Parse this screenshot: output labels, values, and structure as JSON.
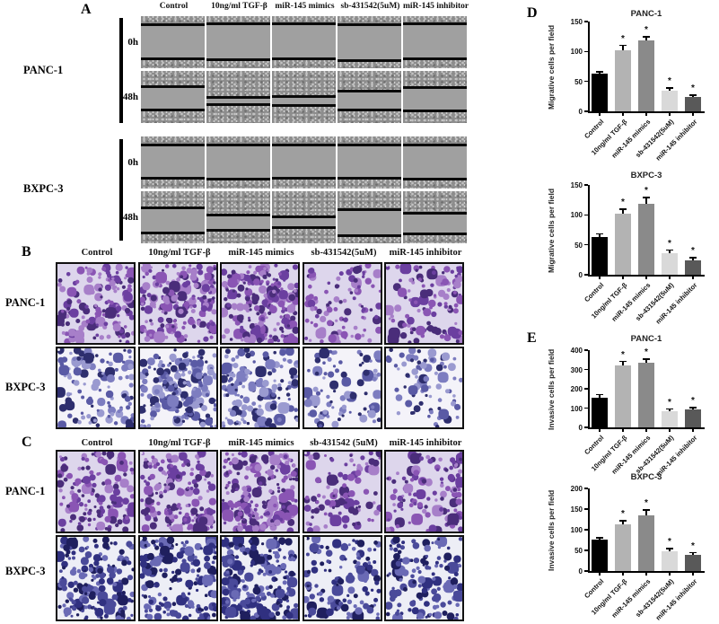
{
  "panel_a": {
    "letter": "A",
    "col_headers": [
      "Control",
      "10ng/ml TGF-β",
      "miR-145 mimics",
      "sb-431542(5uM)",
      "miR-145 inhibitor"
    ],
    "groups": [
      {
        "cell_line": "PANC-1",
        "rows": [
          {
            "time": "0h",
            "wounds": [
              [
                13,
                80
              ],
              [
                12,
                81
              ],
              [
                12,
                80
              ],
              [
                13,
                82
              ],
              [
                12,
                80
              ]
            ]
          },
          {
            "time": "48h",
            "wounds": [
              [
                28,
                72
              ],
              [
                48,
                62
              ],
              [
                47,
                64
              ],
              [
                36,
                72
              ],
              [
                29,
                74
              ]
            ]
          }
        ]
      },
      {
        "cell_line": "BXPC-3",
        "rows": [
          {
            "time": "0h",
            "wounds": [
              [
                14,
                78
              ],
              [
                13,
                79
              ],
              [
                14,
                78
              ],
              [
                13,
                78
              ],
              [
                14,
                79
              ]
            ]
          },
          {
            "time": "48h",
            "wounds": [
              [
                30,
                77
              ],
              [
                43,
                72
              ],
              [
                46,
                68
              ],
              [
                33,
                83
              ],
              [
                40,
                80
              ]
            ]
          }
        ]
      }
    ]
  },
  "panel_b": {
    "letter": "B",
    "col_headers": [
      "Control",
      "10ng/ml TGF-β",
      "miR-145 mimics",
      "sb-431542(5uM)",
      "miR-145 inhibitor"
    ],
    "rows": [
      {
        "cell_line": "PANC-1",
        "theme": "purple",
        "densities": [
          0.55,
          0.85,
          0.9,
          0.3,
          0.35
        ]
      },
      {
        "cell_line": "BXPC-3",
        "theme": "blue",
        "densities": [
          0.4,
          0.8,
          0.6,
          0.22,
          0.18
        ]
      }
    ]
  },
  "panel_c": {
    "letter": "C",
    "col_headers": [
      "Control",
      "10ng/ml TGF-β",
      "miR-145 mimics",
      "sb-431542 (5uM)",
      "miR-145 inhibitor"
    ],
    "rows": [
      {
        "cell_line": "PANC-1",
        "theme": "purple",
        "densities": [
          0.6,
          0.8,
          0.95,
          0.3,
          0.45
        ]
      },
      {
        "cell_line": "BXPC-3",
        "theme": "darkblue",
        "densities": [
          0.8,
          0.75,
          0.95,
          0.45,
          0.5
        ]
      }
    ]
  },
  "panel_d": {
    "letter": "D"
  },
  "panel_e": {
    "letter": "E"
  },
  "stain_themes": {
    "purple": {
      "bg": "#ddd6ec",
      "dots": [
        "#8a55b4",
        "#6b3fa0",
        "#a77fc9",
        "#4a2d7a"
      ]
    },
    "blue": {
      "bg": "#f4f3f9",
      "dots": [
        "#7d7dc0",
        "#5a5aa5",
        "#2e2e6e",
        "#9a9ad0"
      ]
    },
    "darkblue": {
      "bg": "#edeef6",
      "dots": [
        "#4a4a9a",
        "#303080",
        "#1f1f5e",
        "#6a6ab5"
      ]
    }
  },
  "chart_data": [
    {
      "type": "bar",
      "panel": "D",
      "title": "PANC-1",
      "ylabel": "Migrative cells per field",
      "categories": [
        "Control",
        "10ng/ml TGF-β",
        "miR-145 mimics",
        "sb-431542(5uM)",
        "miR-145 inhibitor"
      ],
      "values": [
        63,
        102,
        118,
        35,
        24
      ],
      "errors": [
        3,
        8,
        6,
        4,
        3
      ],
      "sig": [
        "",
        "*",
        "*",
        "*",
        "*"
      ],
      "ylim": [
        0,
        150
      ],
      "yticks": [
        0,
        50,
        100,
        150
      ],
      "bar_colors": [
        "#000000",
        "#b3b3b3",
        "#8a8a8a",
        "#d9d9d9",
        "#595959"
      ]
    },
    {
      "type": "bar",
      "panel": "D",
      "title": "BXPC-3",
      "ylabel": "Migrative cells per field",
      "categories": [
        "Control",
        "10ng/ml TGF-β",
        "miR-145 mimics",
        "sb-431542(5uM)",
        "miR-145 inhibitor"
      ],
      "values": [
        63,
        102,
        118,
        36,
        24
      ],
      "errors": [
        5,
        7,
        11,
        5,
        4
      ],
      "sig": [
        "",
        "*",
        "*",
        "*",
        "*"
      ],
      "ylim": [
        0,
        150
      ],
      "yticks": [
        0,
        50,
        100,
        150
      ],
      "bar_colors": [
        "#000000",
        "#b3b3b3",
        "#8a8a8a",
        "#d9d9d9",
        "#595959"
      ]
    },
    {
      "type": "bar",
      "panel": "E",
      "title": "PANC-1",
      "ylabel": "Invasive cells per field",
      "categories": [
        "Control",
        "10ng/ml TGF-β",
        "miR-145 mimics",
        "sb-431542(5uM)",
        "miR-145 inhibitor"
      ],
      "values": [
        155,
        323,
        337,
        85,
        93
      ],
      "errors": [
        13,
        17,
        15,
        10,
        8
      ],
      "sig": [
        "",
        "*",
        "*",
        "*",
        "*"
      ],
      "ylim": [
        0,
        400
      ],
      "yticks": [
        0,
        100,
        200,
        300,
        400
      ],
      "bar_colors": [
        "#000000",
        "#b3b3b3",
        "#8a8a8a",
        "#d9d9d9",
        "#595959"
      ]
    },
    {
      "type": "bar",
      "panel": "E",
      "title": "BXPC-3",
      "ylabel": "Invasive cells per field",
      "categories": [
        "Control",
        "10ng/ml TGF-β",
        "miR-145 mimics",
        "sb-431542(5uM)",
        "miR-145 inhibitor"
      ],
      "values": [
        76,
        113,
        135,
        48,
        40
      ],
      "errors": [
        4,
        8,
        12,
        6,
        4
      ],
      "sig": [
        "",
        "*",
        "*",
        "*",
        "*"
      ],
      "ylim": [
        0,
        200
      ],
      "yticks": [
        0,
        50,
        100,
        150,
        200
      ],
      "bar_colors": [
        "#000000",
        "#b3b3b3",
        "#8a8a8a",
        "#d9d9d9",
        "#595959"
      ]
    }
  ]
}
